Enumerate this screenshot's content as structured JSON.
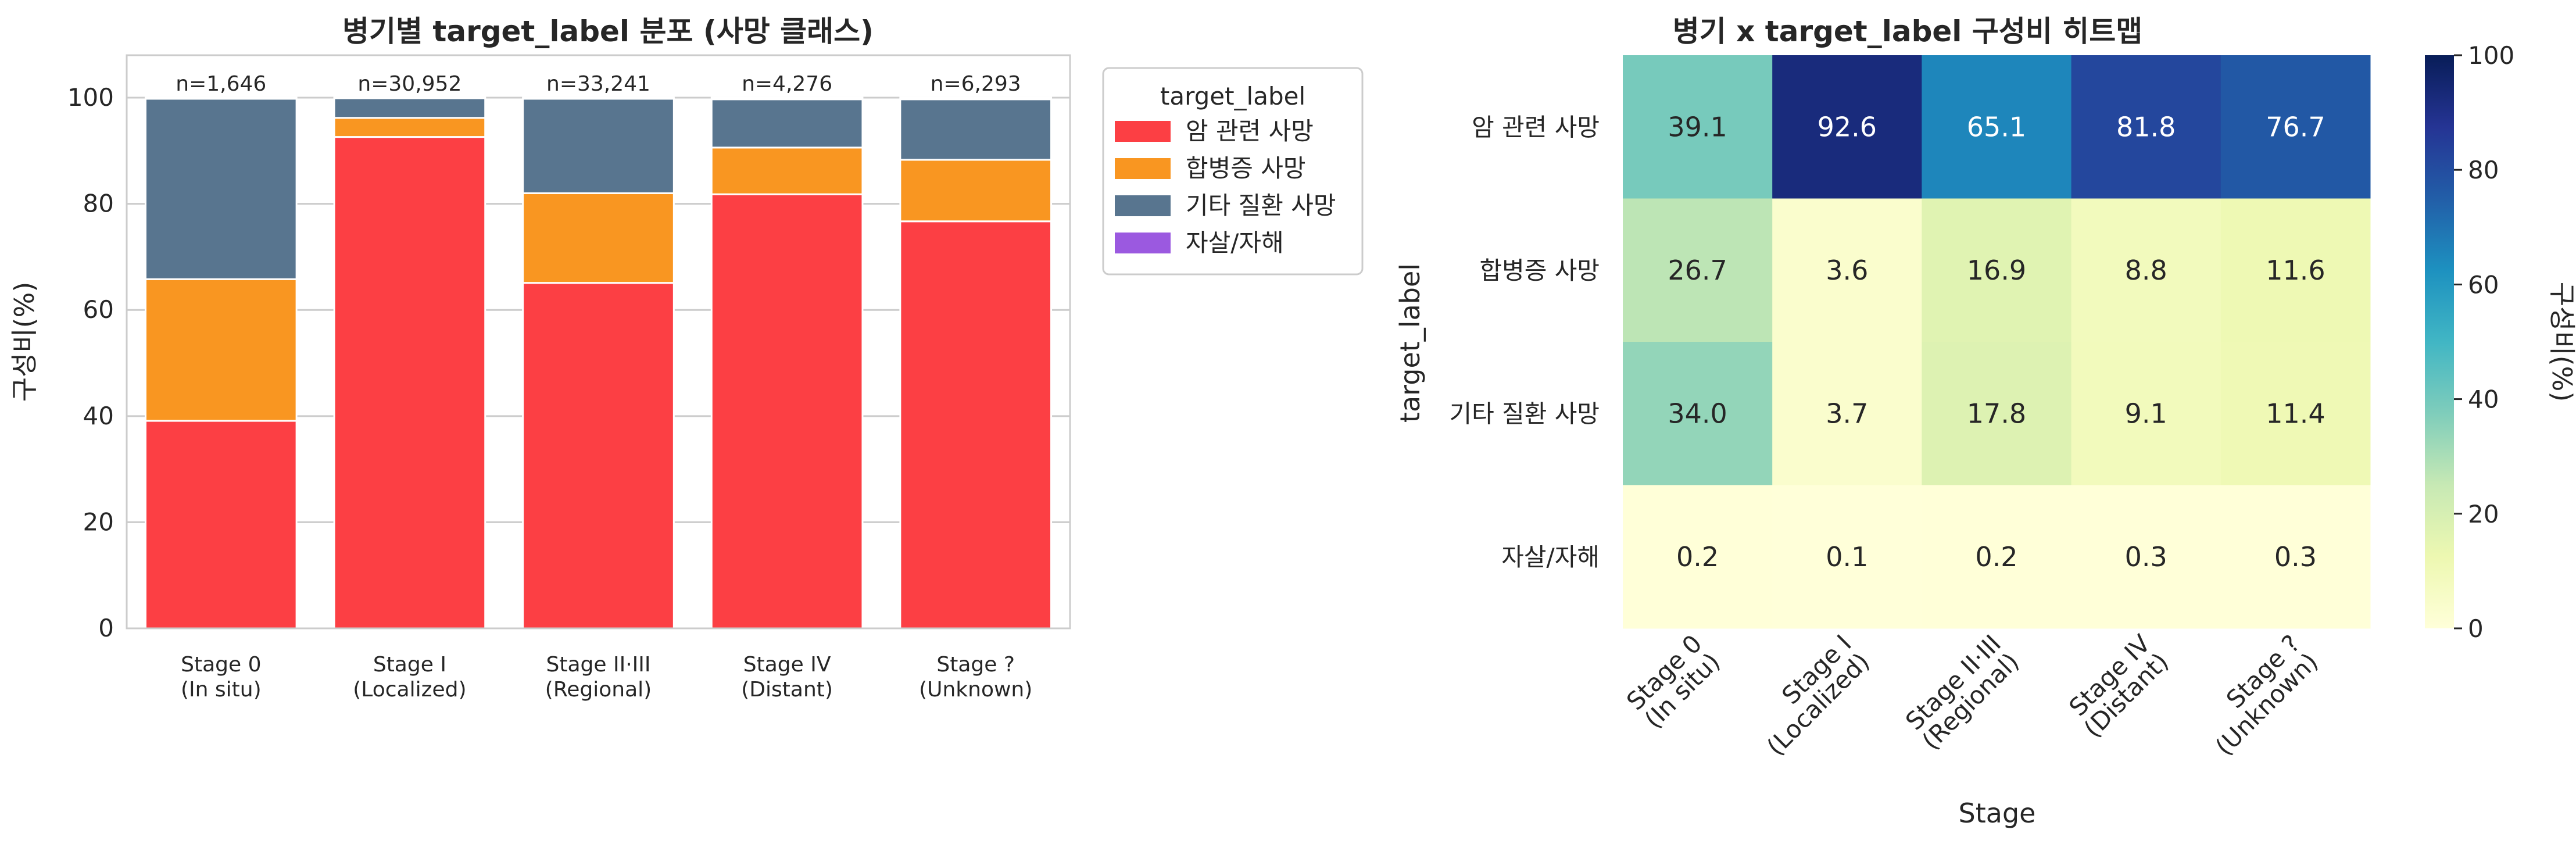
{
  "chart_data": [
    {
      "type": "bar",
      "stacked": true,
      "title": "병기별 target_label 분포 (사망 클래스)",
      "xlabel": "",
      "ylabel": "구성비(%)",
      "ylim": [
        0,
        108
      ],
      "yticks": [
        0,
        20,
        40,
        60,
        80,
        100
      ],
      "categories": [
        [
          "Stage 0",
          "(In situ)"
        ],
        [
          "Stage I",
          "(Localized)"
        ],
        [
          "Stage II·III",
          "(Regional)"
        ],
        [
          "Stage IV",
          "(Distant)"
        ],
        [
          "Stage ?",
          "(Unknown)"
        ]
      ],
      "annotations": [
        "n=1,646",
        "n=30,952",
        "n=33,241",
        "n=4,276",
        "n=6,293"
      ],
      "legend": {
        "title": "target_label",
        "placement": "outside-upper-right"
      },
      "grid": true,
      "series": [
        {
          "name": "암 관련 사망",
          "color": "#fc3f44",
          "values": [
            39.1,
            92.6,
            65.1,
            81.8,
            76.7
          ]
        },
        {
          "name": "합병증 사망",
          "color": "#f99621",
          "values": [
            26.7,
            3.6,
            16.9,
            8.8,
            11.6
          ]
        },
        {
          "name": "기타 질환 사망",
          "color": "#58758f",
          "values": [
            34.0,
            3.7,
            17.8,
            9.1,
            11.4
          ]
        },
        {
          "name": "자살/자해",
          "color": "#9b59e0",
          "values": [
            0.2,
            0.1,
            0.2,
            0.3,
            0.3
          ]
        }
      ]
    },
    {
      "type": "heatmap",
      "title": "병기 x target_label 구성비 히트맵",
      "xlabel": "Stage",
      "ylabel": "target_label",
      "x_categories": [
        [
          "Stage 0",
          "(In situ)"
        ],
        [
          "Stage I",
          "(Localized)"
        ],
        [
          "Stage II·III",
          "(Regional)"
        ],
        [
          "Stage IV",
          "(Distant)"
        ],
        [
          "Stage ?",
          "(Unknown)"
        ]
      ],
      "y_categories": [
        "암 관련 사망",
        "합병증 사망",
        "기타 질환 사망",
        "자살/자해"
      ],
      "values": [
        [
          39.1,
          92.6,
          65.1,
          81.8,
          76.7
        ],
        [
          26.7,
          3.6,
          16.9,
          8.8,
          11.6
        ],
        [
          34.0,
          3.7,
          17.8,
          9.1,
          11.4
        ],
        [
          0.2,
          0.1,
          0.2,
          0.3,
          0.3
        ]
      ],
      "colormap": "YlGnBu",
      "colorbar": {
        "label": "구성비(%)",
        "range": [
          0,
          100
        ],
        "ticks": [
          0,
          20,
          40,
          60,
          80,
          100
        ]
      }
    }
  ]
}
